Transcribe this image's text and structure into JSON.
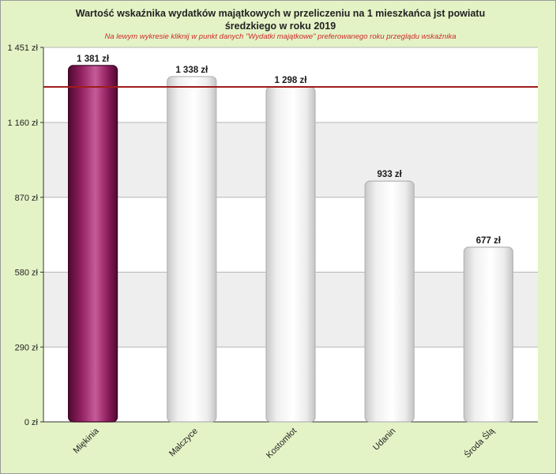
{
  "title_line1": "Wartość wskaźnika wydatków majątkowych w przeliczeniu na 1 mieszkańca jst powiatu",
  "title_line2": "średzkiego w roku 2019",
  "subtitle": "Na lewym wykresie kliknij w punkt  danych \"Wydatki majątkowe\" preferowanego roku przeglądu wskaźnika",
  "chart_data": {
    "type": "bar",
    "title": "Wartość wskaźnika wydatków majątkowych w przeliczeniu na 1 mieszkańca jst powiatu średzkiego w roku 2019",
    "categories": [
      "Miękinia",
      "Malczyce",
      "Kostomłoty",
      "Udanin",
      "Środa Śląska"
    ],
    "category_labels": [
      "Miękinia",
      "Malczyce",
      "Kostomłot",
      "Udanin",
      "Środa Ślą"
    ],
    "values": [
      1381,
      1338,
      1298,
      933,
      677
    ],
    "value_labels": [
      "1 381 zł",
      "1 338 zł",
      "1 298 zł",
      "933 zł",
      "677 zł"
    ],
    "highlighted_index": 0,
    "reference_line": 1298,
    "ylim": [
      0,
      1451
    ],
    "yticks": [
      0,
      290,
      580,
      870,
      1160,
      1451
    ],
    "ytick_labels": [
      "0 zł",
      "290 zł",
      "580 zł",
      "870 zł",
      "1 160 zł",
      "1 451 zł"
    ],
    "grid": true,
    "legend": "none",
    "colors": {
      "highlight_bar": "#8f1e5e",
      "normal_bar": "#f4f4f4",
      "reference_line": "#a01c1c",
      "band_light": "#ffffff",
      "band_shade": "#eeeeee",
      "frame_background": "#e4f3c6"
    }
  }
}
